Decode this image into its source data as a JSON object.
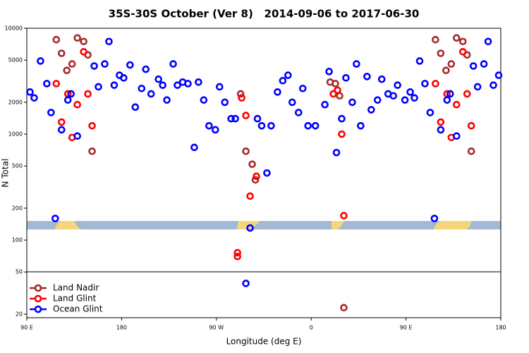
{
  "chart_data": {
    "type": "scatter",
    "title": "35S-30S October (Ver 8)   2014-09-06 to 2017-06-30",
    "x_label": "Longitude (deg E)",
    "y_label": "N Total",
    "log_y": true,
    "legend": "bottom-left",
    "xlim": [
      90,
      540
    ],
    "xticks": [
      {
        "value": 90,
        "label": "90 E"
      },
      {
        "value": 180,
        "label": "180"
      },
      {
        "value": 270,
        "label": "90 W"
      },
      {
        "value": 360,
        "label": "0"
      },
      {
        "value": 450,
        "label": "90 E"
      },
      {
        "value": 540,
        "label": "180"
      }
    ],
    "ylim": [
      18.5,
      10000
    ],
    "yticks": [
      20,
      50,
      100,
      200,
      500,
      1000,
      2000,
      5000,
      10000
    ],
    "series": [
      {
        "name": "Land Nadir",
        "color": "#a52a2a",
        "x": [
          118,
          123,
          128,
          133,
          138,
          144,
          148,
          152,
          293,
          298,
          304,
          307,
          378,
          383,
          387,
          391,
          478,
          483,
          488,
          493,
          498,
          504,
          508,
          512
        ],
        "values": [
          7800,
          5800,
          4000,
          4600,
          8100,
          7500,
          5600,
          690,
          2400,
          690,
          520,
          370,
          3100,
          3000,
          2300,
          23,
          7800,
          5800,
          4000,
          4600,
          8100,
          7500,
          5600,
          690
        ]
      },
      {
        "name": "Land Glint",
        "color": "#ff0000",
        "x": [
          118,
          123,
          129,
          133,
          138,
          144,
          148,
          152,
          294,
          298,
          290,
          290,
          302,
          308,
          381,
          385,
          389,
          391,
          478,
          483,
          489,
          493,
          498,
          504,
          508,
          512
        ],
        "values": [
          3000,
          1300,
          2400,
          930,
          1900,
          6000,
          2400,
          1200,
          2200,
          1500,
          76,
          70,
          260,
          400,
          2400,
          2600,
          1000,
          170,
          3000,
          1300,
          2400,
          930,
          1900,
          6000,
          2400,
          1200
        ]
      },
      {
        "name": "Ocean Glint",
        "color": "#0000ff",
        "x": [
          93,
          97,
          103,
          109,
          113,
          117,
          123,
          129,
          132,
          138,
          154,
          158,
          164,
          168,
          173,
          178,
          182,
          188,
          193,
          199,
          203,
          208,
          215,
          219,
          223,
          229,
          233,
          238,
          243,
          249,
          253,
          258,
          263,
          269,
          273,
          278,
          284,
          288,
          298,
          302,
          309,
          313,
          318,
          322,
          328,
          333,
          338,
          342,
          348,
          352,
          357,
          364,
          373,
          377,
          384,
          389,
          393,
          399,
          403,
          407,
          413,
          417,
          423,
          427,
          433,
          438,
          442,
          449,
          454,
          458,
          463,
          468,
          473,
          477,
          483,
          489,
          492,
          498,
          514,
          518,
          524,
          528,
          533,
          538
        ],
        "values": [
          2500,
          2200,
          4900,
          3000,
          1600,
          160,
          1100,
          2100,
          2400,
          960,
          4400,
          2800,
          4600,
          7500,
          2900,
          3600,
          3400,
          4500,
          1800,
          2700,
          4100,
          2400,
          3300,
          2900,
          2100,
          4600,
          2900,
          3100,
          3000,
          750,
          3100,
          2100,
          1200,
          1100,
          2800,
          2000,
          1400,
          1400,
          39,
          130,
          1400,
          1200,
          430,
          1200,
          2500,
          3200,
          3600,
          2000,
          1600,
          2700,
          1200,
          1200,
          1900,
          3900,
          670,
          1400,
          3400,
          2000,
          4600,
          1200,
          3500,
          1700,
          2100,
          3300,
          2400,
          2300,
          2900,
          2100,
          2500,
          2200,
          4900,
          3000,
          1600,
          160,
          1100,
          2100,
          2400,
          960,
          4400,
          2800,
          4600,
          7500,
          2900,
          3600
        ]
      }
    ]
  }
}
